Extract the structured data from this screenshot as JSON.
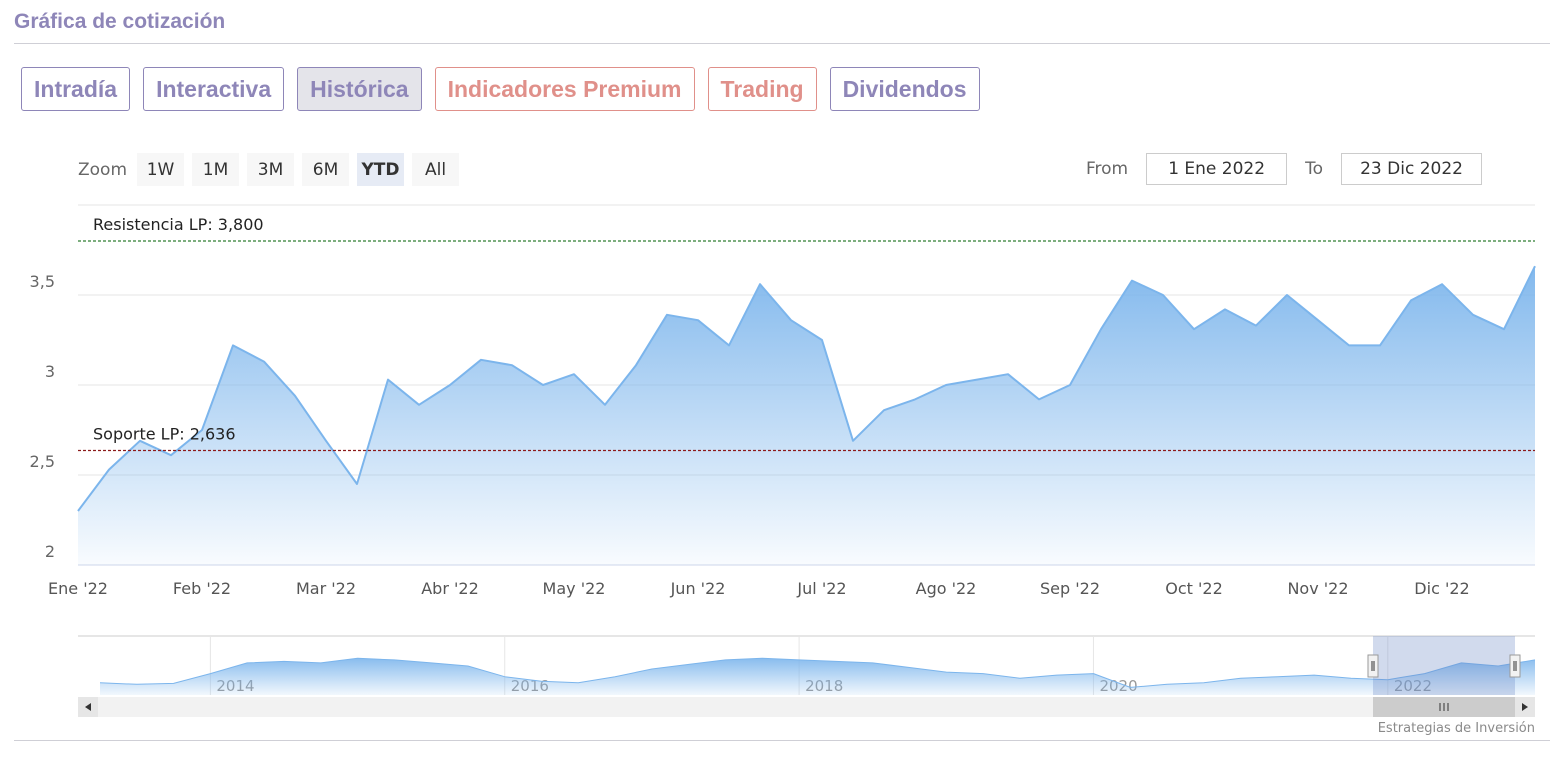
{
  "header": {
    "title": "Gráfica de cotización"
  },
  "tabs": [
    {
      "label": "Intradía",
      "color": "#8e86b8"
    },
    {
      "label": "Interactiva",
      "color": "#8e86b8"
    },
    {
      "label": "Histórica",
      "color": "#8e86b8"
    },
    {
      "label": "Indicadores Premium",
      "color": "#e0908a"
    },
    {
      "label": "Trading",
      "color": "#e0908a"
    },
    {
      "label": "Dividendos",
      "color": "#8e86b8"
    }
  ],
  "active_tab": 2,
  "range_selector": {
    "zoom_label": "Zoom",
    "buttons": [
      "1W",
      "1M",
      "3M",
      "6M",
      "YTD",
      "All"
    ],
    "selected": 4,
    "from_label": "From",
    "from": "1 Ene 2022",
    "to_label": "To",
    "to": "23 Dic 2022"
  },
  "chart_data": [
    {
      "type": "area",
      "color": "#7cb5ec",
      "categories": [
        "Ene '22",
        null,
        null,
        null,
        "Feb '22",
        null,
        null,
        null,
        "Mar '22",
        null,
        null,
        null,
        "Abr '22",
        null,
        null,
        null,
        "May '22",
        null,
        null,
        null,
        "Jun '22",
        null,
        null,
        null,
        "Jul '22",
        null,
        null,
        null,
        "Ago '22",
        null,
        null,
        null,
        "Sep '22",
        null,
        null,
        null,
        "Oct '22",
        null,
        null,
        null,
        "Nov '22",
        null,
        null,
        null,
        "Dic '22",
        null,
        null,
        null
      ],
      "values": [
        2.3,
        2.53,
        2.69,
        2.61,
        2.75,
        3.22,
        3.13,
        2.94,
        2.69,
        2.45,
        3.03,
        2.89,
        3.0,
        3.14,
        3.11,
        3.0,
        3.06,
        2.89,
        3.11,
        3.39,
        3.36,
        3.22,
        3.56,
        3.36,
        3.25,
        2.69,
        2.86,
        2.92,
        3.0,
        3.03,
        3.06,
        2.92,
        3.0,
        3.31,
        3.58,
        3.5,
        3.31,
        3.42,
        3.33,
        3.5,
        3.36,
        3.22,
        3.22,
        3.47,
        3.56,
        3.39,
        3.31,
        3.66
      ],
      "ylim": [
        2,
        4
      ],
      "yticks": [
        2,
        {
          "value": 2.5,
          "label": "2,5"
        },
        3,
        {
          "value": 3.5,
          "label": "3,5"
        }
      ],
      "grid": true,
      "plot_lines": [
        {
          "value": 3.8,
          "label": "Resistencia LP: 3,800",
          "color": "#2e7d32"
        },
        {
          "value": 2.636,
          "label": "Soporte LP: 2,636",
          "color": "#8b1a1a"
        }
      ]
    },
    {
      "type": "area",
      "color": "#7cb5ec",
      "categories": [
        null,
        null,
        null,
        "2014",
        null,
        null,
        null,
        null,
        null,
        null,
        null,
        "2016",
        null,
        null,
        null,
        null,
        null,
        null,
        null,
        "2018",
        null,
        null,
        null,
        null,
        null,
        null,
        null,
        "2020",
        null,
        null,
        null,
        null,
        null,
        null,
        null,
        "2022",
        null,
        null,
        null,
        null
      ],
      "values": [
        2.4,
        2.35,
        2.38,
        2.7,
        3.05,
        3.1,
        3.05,
        3.2,
        3.15,
        3.05,
        2.95,
        2.6,
        2.45,
        2.4,
        2.6,
        2.85,
        3.0,
        3.15,
        3.2,
        3.15,
        3.1,
        3.05,
        2.9,
        2.75,
        2.7,
        2.55,
        2.65,
        2.7,
        2.25,
        2.35,
        2.4,
        2.55,
        2.6,
        2.65,
        2.55,
        2.5,
        2.7,
        3.05,
        2.95,
        3.15
      ],
      "ylim": [
        2,
        3.8
      ]
    }
  ],
  "credits": "Estrategias de Inversión"
}
